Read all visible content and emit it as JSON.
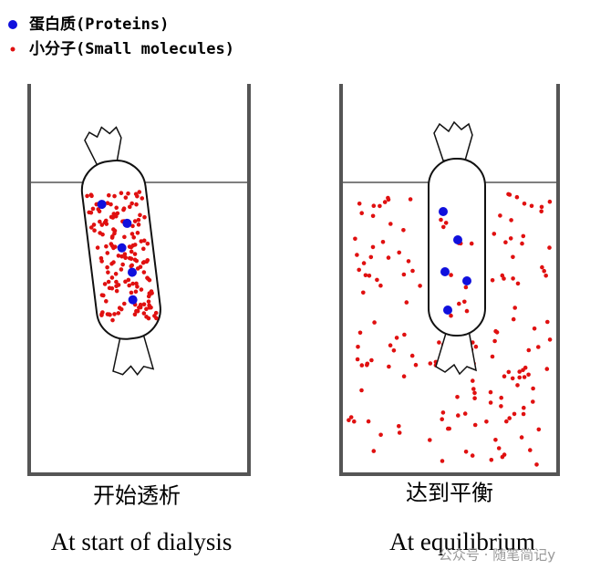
{
  "legend": {
    "items": [
      "蛋白质(Proteins)",
      "小分子(Small molecules)"
    ]
  },
  "panels": [
    {
      "caption_zh": "开始透析",
      "caption_en": "At start of dialysis"
    },
    {
      "caption_zh": "达到平衡",
      "caption_en": "At equilibrium"
    }
  ],
  "watermark": "公众号 · 随笔简记y"
}
